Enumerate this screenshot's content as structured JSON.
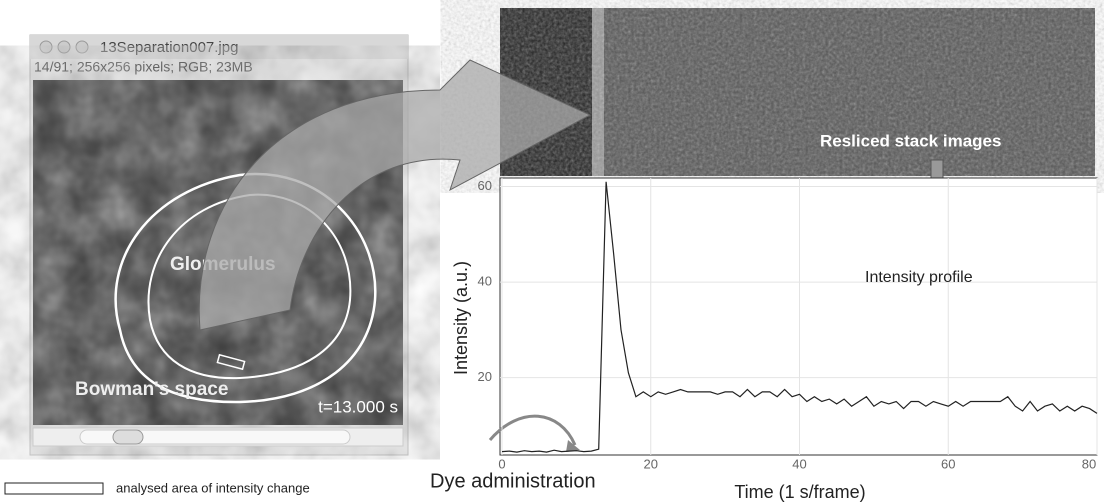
{
  "chart_data": {
    "type": "line",
    "ylabel": "Intensity (a.u.)",
    "xlabel": "Time (1 s/frame)",
    "annotations": [
      "Resliced stack images",
      "Intensity profile",
      "Dye administration"
    ],
    "x": [
      0,
      1,
      2,
      3,
      4,
      5,
      6,
      7,
      8,
      9,
      10,
      11,
      12,
      13,
      14,
      15,
      16,
      17,
      18,
      19,
      20,
      21,
      22,
      23,
      24,
      25,
      26,
      27,
      28,
      29,
      30,
      31,
      32,
      33,
      34,
      35,
      36,
      37,
      38,
      39,
      40,
      41,
      42,
      43,
      44,
      45,
      46,
      47,
      48,
      49,
      50,
      51,
      52,
      53,
      54,
      55,
      56,
      57,
      58,
      59,
      60,
      61,
      62,
      63,
      64,
      65,
      66,
      67,
      68,
      69,
      70,
      71,
      72,
      73,
      74,
      75,
      76,
      77,
      78,
      79,
      80
    ],
    "values": [
      4.5,
      4.6,
      4.4,
      4.7,
      4.5,
      4.6,
      4.4,
      4.8,
      4.5,
      4.6,
      4.7,
      4.5,
      4.6,
      5,
      61,
      46,
      30,
      21,
      16,
      17,
      16,
      17,
      16.5,
      17,
      17.5,
      17,
      17,
      17,
      17,
      16.5,
      17,
      17,
      16,
      17.5,
      16,
      17,
      17,
      16,
      17.5,
      16,
      16.5,
      15,
      16,
      15,
      15.5,
      14.5,
      15.5,
      14,
      15,
      16,
      14,
      15,
      14.5,
      15,
      13.5,
      15,
      15,
      14,
      15,
      14.5,
      14,
      15,
      14,
      15,
      15,
      15,
      15,
      15,
      16,
      14,
      13,
      15,
      13,
      14,
      14.5,
      13,
      14,
      13,
      14,
      13.5,
      12.5
    ],
    "color": "#222222",
    "xlim": [
      0,
      80
    ],
    "ylim": [
      4,
      62
    ],
    "xticks": [
      0,
      20,
      40,
      60,
      80
    ],
    "yticks": [
      20,
      40,
      60
    ],
    "grid": true
  },
  "image": {
    "window_title": "13Separation007.jpg",
    "info": "14/91; 256x256 pixels; RGB; 23MB",
    "labels": [
      "Glomerulus",
      "Bowman's space"
    ],
    "timestamp": "t=13.000 s"
  },
  "legend": "analysed area of intensity change"
}
